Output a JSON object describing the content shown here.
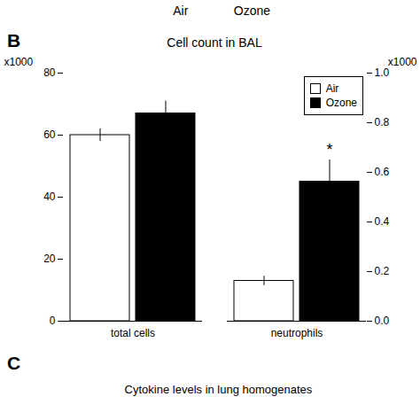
{
  "chart_data": {
    "type": "bar",
    "title": "Cell count in BAL",
    "headers": [
      "Air",
      "Ozone"
    ],
    "panel_labels": [
      "B",
      "C"
    ],
    "caption": "Cytokine levels in lung homogenates",
    "categories": [
      "total cells",
      "neutrophils"
    ],
    "series": [
      {
        "name": "Air",
        "color": "white",
        "values": [
          60,
          13
        ],
        "errors": [
          2,
          1.5
        ]
      },
      {
        "name": "Ozone",
        "color": "black",
        "values": [
          67,
          45
        ],
        "errors": [
          4,
          7
        ]
      }
    ],
    "ylabel": "x1000",
    "y2label": "x1000",
    "ylim": [
      0,
      80
    ],
    "yticks": [
      0,
      20,
      40,
      60,
      80
    ],
    "y2lim": [
      0,
      1.0
    ],
    "y2ticks": [
      {
        "value": 0,
        "label": "0.0"
      },
      0.2,
      0.4,
      0.6,
      0.8,
      {
        "value": 1,
        "label": "1.0"
      }
    ],
    "annotations": [
      {
        "text": "*",
        "category": "neutrophils",
        "series": "Ozone"
      }
    ],
    "legend": "upper right",
    "grid": false
  }
}
